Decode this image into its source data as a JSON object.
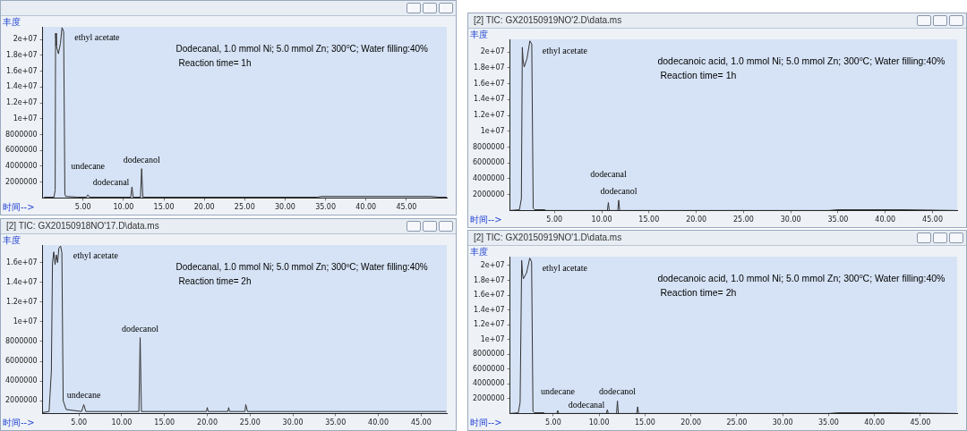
{
  "chart_data": [
    {
      "type": "line",
      "xlabel": "时间-->",
      "ylabel": "丰度",
      "grid": false,
      "legend": false,
      "marker": "none",
      "line_style": "solid",
      "x": [
        0.2,
        1.4,
        1.55,
        1.6,
        1.7,
        1.95,
        2.2,
        2.4,
        2.6,
        2.75,
        2.85,
        4.3,
        5.4,
        5.6,
        5.8,
        10.9,
        11.05,
        11.2,
        12.1,
        12.25,
        12.4,
        34,
        34.5,
        48,
        49,
        50
      ],
      "series": [
        {
          "color": "#333333",
          "values": [
            100000,
            100000,
            1000000,
            20800000,
            19200000,
            18200000,
            19500000,
            21500000,
            21000000,
            500000,
            200000,
            100000,
            100000,
            400000,
            100000,
            100000,
            1400000,
            100000,
            100000,
            3700000,
            100000,
            100000,
            200000,
            200000,
            100000,
            100000
          ]
        }
      ],
      "xlim": [
        0,
        50
      ],
      "ylim": [
        0,
        21600000
      ],
      "xticks": [
        {
          "value": 5,
          "label": "5.00"
        },
        {
          "value": 10,
          "label": "10.00"
        },
        {
          "value": 15,
          "label": "15.00"
        },
        {
          "value": 20,
          "label": "20.00"
        },
        {
          "value": 25,
          "label": "25.00"
        },
        {
          "value": 30,
          "label": "30.00"
        },
        {
          "value": 35,
          "label": "35.00"
        },
        {
          "value": 40,
          "label": "40.00"
        },
        {
          "value": 45,
          "label": "45.00"
        }
      ],
      "yticks": [
        2000000,
        4000000,
        6000000,
        8000000,
        {
          "value": 10000000,
          "label": "1e+07"
        },
        {
          "value": 12000000,
          "label": "1.2e+07"
        },
        {
          "value": 14000000,
          "label": "1.4e+07"
        },
        {
          "value": 16000000,
          "label": "1.6e+07"
        },
        {
          "value": 18000000,
          "label": "1.8e+07"
        },
        {
          "value": 20000000,
          "label": "2e+07"
        }
      ],
      "annotations": [
        "Dodecanal, 1.0 mmol Ni; 5.0 mmol Zn; 300$^{o}$C; Water filling:40%",
        "Reaction time= 1h",
        {
          "text": "ethyl acetate",
          "x": 2.4,
          "y": 21500000
        },
        {
          "text": "undecane",
          "x": 5.6,
          "y": 400000
        },
        {
          "text": "dodecanal",
          "x": 11.05,
          "y": 1400000
        },
        {
          "text": "dodecanol",
          "x": 12.25,
          "y": 3700000
        }
      ]
    },
    {
      "type": "line",
      "title": "[2] TIC: GX20150918NO'17.D\\data.ms",
      "xlabel": "时间-->",
      "ylabel": "丰度",
      "grid": false,
      "legend": false,
      "marker": "none",
      "line_style": "solid",
      "x": [
        0.8,
        1.5,
        1.77,
        1.9,
        2.05,
        2.2,
        2.35,
        2.5,
        2.65,
        2.85,
        3.0,
        3.15,
        3.5,
        5.3,
        5.56,
        5.8,
        12.0,
        12.15,
        12.3,
        19.9,
        20.0,
        20.1,
        22.4,
        22.5,
        22.6,
        24.4,
        24.5,
        24.7,
        47.9
      ],
      "series": [
        {
          "color": "#333333",
          "values": [
            800000,
            900000,
            5000000,
            16000000,
            17100000,
            15800000,
            16800000,
            16000000,
            17500000,
            17700000,
            17000000,
            2000000,
            1100000,
            900000,
            1600000,
            900000,
            900000,
            8400000,
            900000,
            900000,
            1300000,
            900000,
            900000,
            1300000,
            900000,
            900000,
            1600000,
            900000,
            900000
          ]
        }
      ],
      "xlim": [
        0.75,
        48
      ],
      "ylim": [
        700000,
        17800000
      ],
      "xticks": [
        {
          "value": 5,
          "label": "5.00"
        },
        {
          "value": 10,
          "label": "10.00"
        },
        {
          "value": 15,
          "label": "15.00"
        },
        {
          "value": 20,
          "label": "20.00"
        },
        {
          "value": 25,
          "label": "25.00"
        },
        {
          "value": 30,
          "label": "30.00"
        },
        {
          "value": 35,
          "label": "35.00"
        },
        {
          "value": 40,
          "label": "40.00"
        },
        {
          "value": 45,
          "label": "45.00"
        }
      ],
      "yticks": [
        2000000,
        4000000,
        6000000,
        8000000,
        {
          "value": 10000000,
          "label": "1e+07"
        },
        {
          "value": 12000000,
          "label": "1.2e+07"
        },
        {
          "value": 14000000,
          "label": "1.4e+07"
        },
        {
          "value": 16000000,
          "label": "1.6e+07"
        }
      ],
      "annotations": [
        "Dodecanal, 1.0 mmol Ni; 5.0 mmol Zn; 300ºC; Water filling:40%",
        "Reaction time= 2h",
        {
          "text": "ethyl acetate",
          "x": 2.85,
          "y": 17700000
        },
        {
          "text": "undecane",
          "x": 5.56,
          "y": 1600000
        },
        {
          "text": "dodecanol",
          "x": 12.15,
          "y": 8400000
        }
      ]
    },
    {
      "type": "line",
      "title": "[2] TIC: GX20150919NO'2.D\\data.ms",
      "xlabel": "时间-->",
      "ylabel": "丰度",
      "grid": false,
      "legend": false,
      "marker": "none",
      "line_style": "solid",
      "x": [
        0.35,
        1.3,
        1.5,
        1.6,
        1.68,
        1.8,
        2.1,
        2.4,
        2.6,
        2.75,
        2.9,
        4.0,
        4.1,
        10.6,
        10.7,
        10.8,
        11.7,
        11.8,
        11.9,
        34,
        35,
        42,
        47.5
      ],
      "series": [
        {
          "color": "#333333",
          "values": [
            0,
            100000,
            1500000,
            20600000,
            19000000,
            18100000,
            19200000,
            21400000,
            21000000,
            300000,
            100000,
            100000,
            0,
            0,
            1000000,
            0,
            0,
            1300000,
            0,
            0,
            100000,
            100000,
            0
          ]
        }
      ],
      "xlim": [
        0.3,
        47.6
      ],
      "ylim": [
        0,
        21600000
      ],
      "xticks": [
        {
          "value": 5,
          "label": "5.00"
        },
        {
          "value": 10,
          "label": "10.00"
        },
        {
          "value": 15,
          "label": "15.00"
        },
        {
          "value": 20,
          "label": "20.00"
        },
        {
          "value": 25,
          "label": "25.00"
        },
        {
          "value": 30,
          "label": "30.00"
        },
        {
          "value": 35,
          "label": "35.00"
        },
        {
          "value": 40,
          "label": "40.00"
        },
        {
          "value": 45,
          "label": "45.00"
        }
      ],
      "yticks": [
        2000000,
        4000000,
        6000000,
        8000000,
        {
          "value": 10000000,
          "label": "1e+07"
        },
        {
          "value": 12000000,
          "label": "1.2e+07"
        },
        {
          "value": 14000000,
          "label": "1.4e+07"
        },
        {
          "value": 16000000,
          "label": "1.6e+07"
        },
        {
          "value": 18000000,
          "label": "1.8e+07"
        },
        {
          "value": 20000000,
          "label": "2e+07"
        }
      ],
      "annotations": [
        "dodecanoic acid, 1.0 mmol Ni; 5.0 mmol Zn; 300$^{o}$C; Water filling:40%",
        "Reaction time= 1h",
        {
          "text": "ethyl acetate",
          "x": 2.4,
          "y": 21400000
        },
        {
          "text": "dodecanal",
          "x": 10.7,
          "y": 1000000
        },
        {
          "text": "dodecanol",
          "x": 11.8,
          "y": 1300000
        }
      ]
    },
    {
      "type": "line",
      "title": "[2] TIC: GX20150919NO'1.D\\data.ms",
      "xlabel": "时间-->",
      "ylabel": "丰度",
      "grid": false,
      "legend": false,
      "marker": "none",
      "line_style": "solid",
      "x": [
        0.35,
        1.2,
        1.4,
        1.57,
        1.65,
        1.75,
        2.1,
        2.45,
        2.65,
        2.8,
        2.95,
        4.0,
        4.1,
        5.4,
        5.5,
        5.6,
        10.8,
        10.9,
        11.0,
        11.9,
        12.0,
        12.1,
        14.1,
        14.2,
        14.3,
        35,
        36,
        42,
        48.9
      ],
      "series": [
        {
          "color": "#333333",
          "values": [
            0,
            100000,
            1500000,
            20700000,
            19000000,
            18200000,
            19000000,
            21000000,
            20500000,
            300000,
            100000,
            100000,
            0,
            0,
            400000,
            0,
            0,
            500000,
            0,
            0,
            1700000,
            0,
            0,
            900000,
            0,
            0,
            100000,
            100000,
            0
          ]
        }
      ],
      "xlim": [
        0.3,
        49
      ],
      "ylim": [
        0,
        21200000
      ],
      "xticks": [
        {
          "value": 5,
          "label": "5.00"
        },
        {
          "value": 10,
          "label": "10.00"
        },
        {
          "value": 15,
          "label": "15.00"
        },
        {
          "value": 20,
          "label": "20.00"
        },
        {
          "value": 25,
          "label": "25.00"
        },
        {
          "value": 30,
          "label": "30.00"
        },
        {
          "value": 35,
          "label": "35.00"
        },
        {
          "value": 40,
          "label": "40.00"
        },
        {
          "value": 45,
          "label": "45.00"
        }
      ],
      "yticks": [
        2000000,
        4000000,
        6000000,
        8000000,
        {
          "value": 10000000,
          "label": "1e+07"
        },
        {
          "value": 12000000,
          "label": "1.2e+07"
        },
        {
          "value": 14000000,
          "label": "1.4e+07"
        },
        {
          "value": 16000000,
          "label": "1.6e+07"
        },
        {
          "value": 18000000,
          "label": "1.8e+07"
        },
        {
          "value": 20000000,
          "label": "2e+07"
        }
      ],
      "annotations": [
        "dodecanoic acid, 1.0 mmol Ni; 5.0 mmol Zn; 300$^{o}$C; Water filling:40%",
        "Reaction time= 2h",
        {
          "text": "ethyl acetate",
          "x": 2.45,
          "y": 21000000
        },
        {
          "text": "undecane",
          "x": 5.5,
          "y": 400000
        },
        {
          "text": "dodecanal",
          "x": 10.9,
          "y": 500000
        },
        {
          "text": "dodecanol",
          "x": 12.0,
          "y": 1700000
        }
      ]
    }
  ]
}
